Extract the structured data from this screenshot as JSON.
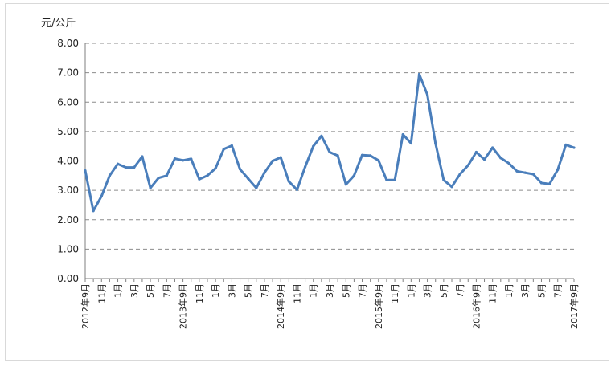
{
  "chart_data": {
    "type": "line",
    "ylabel": "元/公斤",
    "ylim": [
      0,
      8
    ],
    "yticks": [
      "0.00",
      "1.00",
      "2.00",
      "3.00",
      "4.00",
      "5.00",
      "6.00",
      "7.00",
      "8.00"
    ],
    "grid": "horizontal dashed",
    "x_tick_labels": [
      "2012年9月",
      "",
      "11月",
      "",
      "1月",
      "",
      "3月",
      "",
      "5月",
      "",
      "7月",
      "",
      "2013年9月",
      "",
      "11月",
      "",
      "1月",
      "",
      "3月",
      "",
      "5月",
      "",
      "7月",
      "",
      "2014年9月",
      "",
      "11月",
      "",
      "1月",
      "",
      "3月",
      "",
      "5月",
      "",
      "7月",
      "",
      "2015年9月",
      "",
      "11月",
      "",
      "1月",
      "",
      "3月",
      "",
      "5月",
      "",
      "7月",
      "",
      "2016年9月",
      "",
      "11月",
      "",
      "1月",
      "",
      "3月",
      "",
      "5月",
      "",
      "7月",
      "",
      "2017年9月"
    ],
    "series": [
      {
        "color": "#4a7ebb",
        "values": [
          3.67,
          2.3,
          2.8,
          3.5,
          3.9,
          3.78,
          3.78,
          4.15,
          3.08,
          3.42,
          3.5,
          4.08,
          4.02,
          4.07,
          3.38,
          3.5,
          3.75,
          4.4,
          4.52,
          3.72,
          3.4,
          3.08,
          3.6,
          4.0,
          4.12,
          3.3,
          3.02,
          3.8,
          4.5,
          4.85,
          4.3,
          4.18,
          3.2,
          3.5,
          4.2,
          4.18,
          4.02,
          3.35,
          3.35,
          4.9,
          4.6,
          6.95,
          6.25,
          4.6,
          3.35,
          3.12,
          3.55,
          3.85,
          4.3,
          4.05,
          4.45,
          4.1,
          3.92,
          3.65,
          3.6,
          3.55,
          3.25,
          3.22,
          3.7,
          4.55,
          4.45
        ]
      }
    ]
  }
}
